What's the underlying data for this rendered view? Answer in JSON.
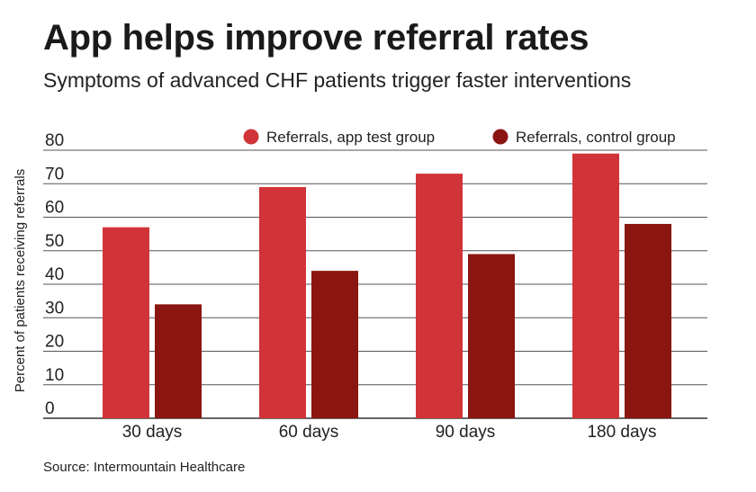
{
  "header": {
    "title": "App helps improve referral rates",
    "subtitle": "Symptoms of advanced CHF patients trigger faster interventions"
  },
  "footer": {
    "source": "Source: Intermountain Healthcare"
  },
  "chart_data": {
    "type": "bar",
    "title": "App helps improve referral rates",
    "subtitle": "Symptoms of advanced CHF patients trigger faster interventions",
    "xlabel": "",
    "ylabel": "Percent of patients receiving referrals",
    "categories": [
      "30 days",
      "60 days",
      "90 days",
      "180 days"
    ],
    "series": [
      {
        "name": "Referrals, app test group",
        "color": "#d13438",
        "values": [
          57,
          69,
          73,
          79
        ]
      },
      {
        "name": "Referrals, control group",
        "color": "#8b1510",
        "values": [
          34,
          44,
          49,
          58
        ]
      }
    ],
    "ylim": [
      0,
      80
    ],
    "yticks": [
      0,
      10,
      20,
      30,
      40,
      50,
      60,
      70,
      80
    ],
    "grid": true,
    "legend": "top-right"
  }
}
